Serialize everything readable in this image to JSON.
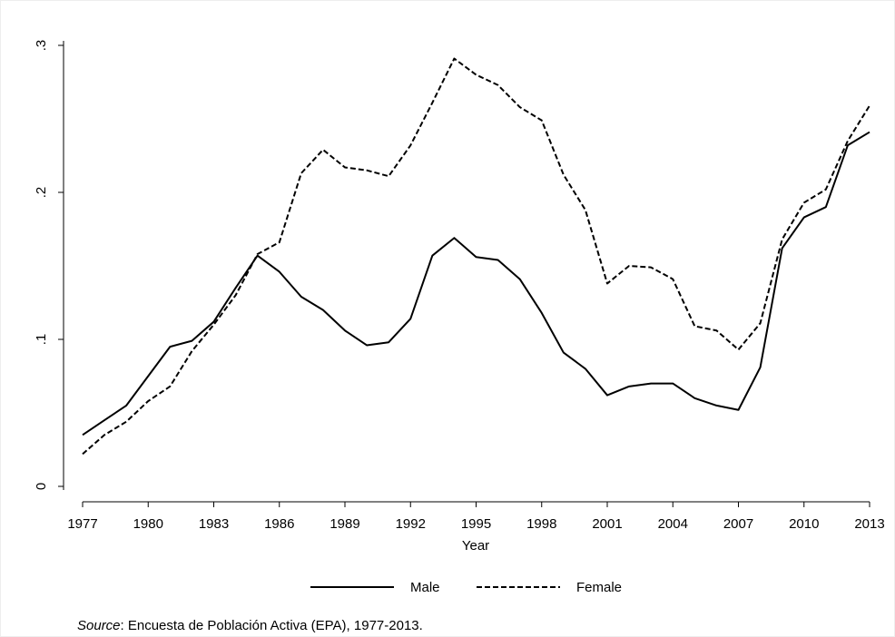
{
  "chart_data": {
    "type": "line",
    "x_label": "Year",
    "source_label": "Source",
    "source_text": ": Encuesta de Población Activa (EPA), 1977-2013.",
    "x": [
      1977,
      1978,
      1979,
      1980,
      1981,
      1982,
      1983,
      1984,
      1985,
      1986,
      1987,
      1988,
      1989,
      1990,
      1991,
      1992,
      1993,
      1994,
      1995,
      1996,
      1997,
      1998,
      1999,
      2000,
      2001,
      2002,
      2003,
      2004,
      2005,
      2006,
      2007,
      2008,
      2009,
      2010,
      2011,
      2012,
      2013
    ],
    "series": [
      {
        "name": "Male",
        "color": "#000000",
        "dash": "solid",
        "values": [
          0.035,
          0.045,
          0.055,
          0.075,
          0.095,
          0.099,
          0.112,
          0.135,
          0.157,
          0.146,
          0.129,
          0.12,
          0.106,
          0.096,
          0.098,
          0.114,
          0.157,
          0.169,
          0.156,
          0.154,
          0.141,
          0.118,
          0.091,
          0.08,
          0.062,
          0.068,
          0.07,
          0.07,
          0.06,
          0.055,
          0.052,
          0.081,
          0.162,
          0.183,
          0.19,
          0.232,
          0.241
        ]
      },
      {
        "name": "Female",
        "color": "#000000",
        "dash": "dashed",
        "values": [
          0.022,
          0.035,
          0.044,
          0.058,
          0.068,
          0.092,
          0.11,
          0.13,
          0.158,
          0.166,
          0.213,
          0.229,
          0.217,
          0.215,
          0.211,
          0.232,
          0.261,
          0.291,
          0.28,
          0.273,
          0.258,
          0.249,
          0.212,
          0.188,
          0.138,
          0.15,
          0.149,
          0.141,
          0.109,
          0.106,
          0.093,
          0.111,
          0.168,
          0.193,
          0.202,
          0.235,
          0.259
        ]
      }
    ],
    "xlim": [
      1977,
      2013
    ],
    "xticks": [
      1977,
      1980,
      1983,
      1986,
      1989,
      1992,
      1995,
      1998,
      2001,
      2004,
      2007,
      2010,
      2013
    ],
    "ylim": [
      0,
      0.3
    ],
    "yticks": [
      0,
      {
        "value": 0.1,
        "label": ".1"
      },
      {
        "value": 0.2,
        "label": ".2"
      },
      {
        "value": 0.3,
        "label": ".3"
      }
    ],
    "grid": false,
    "legend": "bottom"
  }
}
